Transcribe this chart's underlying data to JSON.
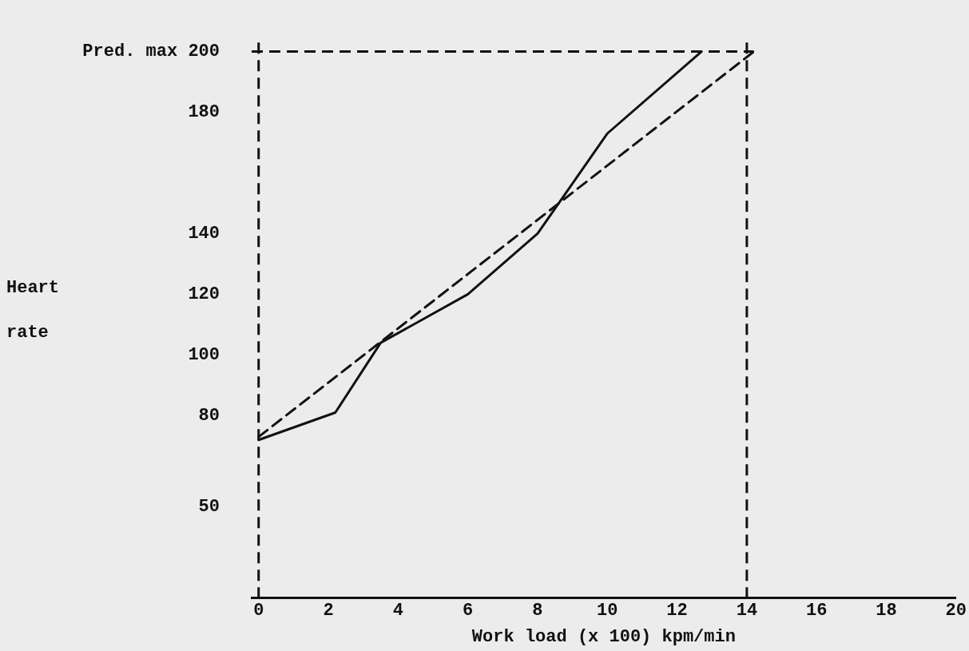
{
  "chart_data": {
    "type": "line",
    "xlabel": "Work load (x 100) kpm/min",
    "ylabel": "Heart rate",
    "xlim": [
      -0.2,
      20
    ],
    "xticks": [
      0,
      2,
      4,
      6,
      8,
      10,
      12,
      14,
      16,
      18,
      20
    ],
    "ylim": [
      20,
      203
    ],
    "yticks": [
      50,
      80,
      100,
      120,
      140,
      180,
      {
        "value": 200,
        "label": "Pred. max 200"
      }
    ],
    "grid": false,
    "legend": false,
    "marker": "none",
    "series": [
      {
        "color": "#111111",
        "line_style": "solid",
        "x": [
          0,
          2.2,
          3.5,
          6,
          8,
          10,
          12.7
        ],
        "values": [
          72,
          81,
          104,
          120,
          140,
          173,
          200
        ]
      },
      {
        "color": "#111111",
        "line_style": "dashed",
        "x": [
          0,
          14.2
        ],
        "values": [
          73,
          200
        ]
      }
    ],
    "ref_lines": [
      {
        "axis": "x",
        "value": 0,
        "line_style": "dashed",
        "color": "#111111"
      },
      {
        "axis": "x",
        "value": 14,
        "line_style": "dashed",
        "color": "#111111"
      },
      {
        "axis": "y",
        "value": 200,
        "line_style": "dashed",
        "color": "#111111"
      }
    ]
  }
}
